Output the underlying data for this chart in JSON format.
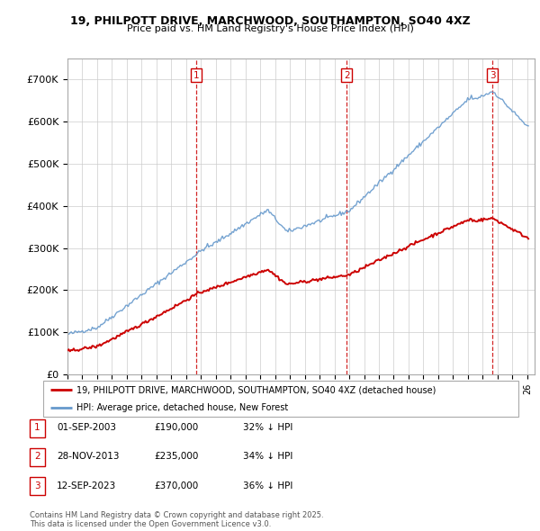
{
  "title": "19, PHILPOTT DRIVE, MARCHWOOD, SOUTHAMPTON, SO40 4XZ",
  "subtitle": "Price paid vs. HM Land Registry's House Price Index (HPI)",
  "property_label": "19, PHILPOTT DRIVE, MARCHWOOD, SOUTHAMPTON, SO40 4XZ (detached house)",
  "hpi_label": "HPI: Average price, detached house, New Forest",
  "footnote": "Contains HM Land Registry data © Crown copyright and database right 2025.\nThis data is licensed under the Open Government Licence v3.0.",
  "property_color": "#cc0000",
  "hpi_color": "#6699cc",
  "purchase_info": [
    [
      "1",
      "01-SEP-2003",
      "£190,000",
      "32% ↓ HPI"
    ],
    [
      "2",
      "28-NOV-2013",
      "£235,000",
      "34% ↓ HPI"
    ],
    [
      "3",
      "12-SEP-2023",
      "£370,000",
      "36% ↓ HPI"
    ]
  ],
  "xmin": 1995.0,
  "xmax": 2026.5,
  "ymin": 0,
  "ymax": 750000,
  "yticks": [
    0,
    100000,
    200000,
    300000,
    400000,
    500000,
    600000,
    700000
  ],
  "ytick_labels": [
    "£0",
    "£100K",
    "£200K",
    "£300K",
    "£400K",
    "£500K",
    "£600K",
    "£700K"
  ]
}
